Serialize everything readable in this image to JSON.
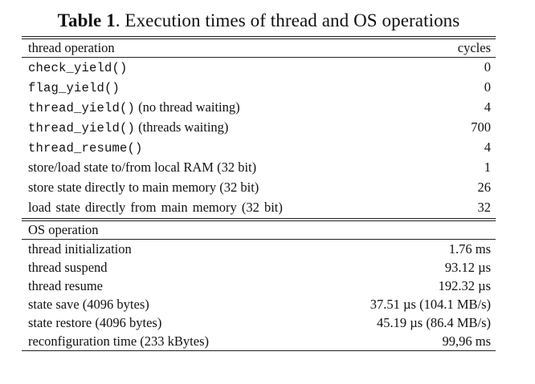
{
  "table": {
    "caption": {
      "label": "Table 1",
      "text": ". Execution times of thread and OS operations"
    },
    "thread_section": {
      "header_label": "thread operation",
      "header_value": "cycles",
      "rows": [
        {
          "code": "check_yield()",
          "text": "",
          "value": "0"
        },
        {
          "code": "flag_yield()",
          "text": "",
          "value": "0"
        },
        {
          "code": "thread_yield()",
          "text": " (no thread waiting)",
          "value": "4"
        },
        {
          "code": "thread_yield()",
          "text": " (threads waiting)",
          "value": "700"
        },
        {
          "code": "thread_resume()",
          "text": "",
          "value": "4"
        },
        {
          "code": "",
          "text": "store/load state to/from local RAM (32 bit)",
          "value": "1"
        },
        {
          "code": "",
          "text": "store state directly to main memory (32 bit)",
          "value": "26"
        },
        {
          "code": "",
          "text": "load state directly from main memory (32 bit)",
          "value": "32"
        }
      ]
    },
    "os_section": {
      "header_label": "OS operation",
      "rows": [
        {
          "label": "thread initialization",
          "value": "1.76 ms"
        },
        {
          "label": "thread suspend",
          "value": "93.12 µs"
        },
        {
          "label": "thread resume",
          "value": "192.32 µs"
        },
        {
          "label": "state save (4096 bytes)",
          "value": "37.51 µs (104.1 MB/s)"
        },
        {
          "label": "state restore (4096 bytes)",
          "value": "45.19 µs (86.4 MB/s)"
        },
        {
          "label": "reconfiguration time (233 kBytes)",
          "value": "99,96 ms"
        }
      ]
    }
  }
}
